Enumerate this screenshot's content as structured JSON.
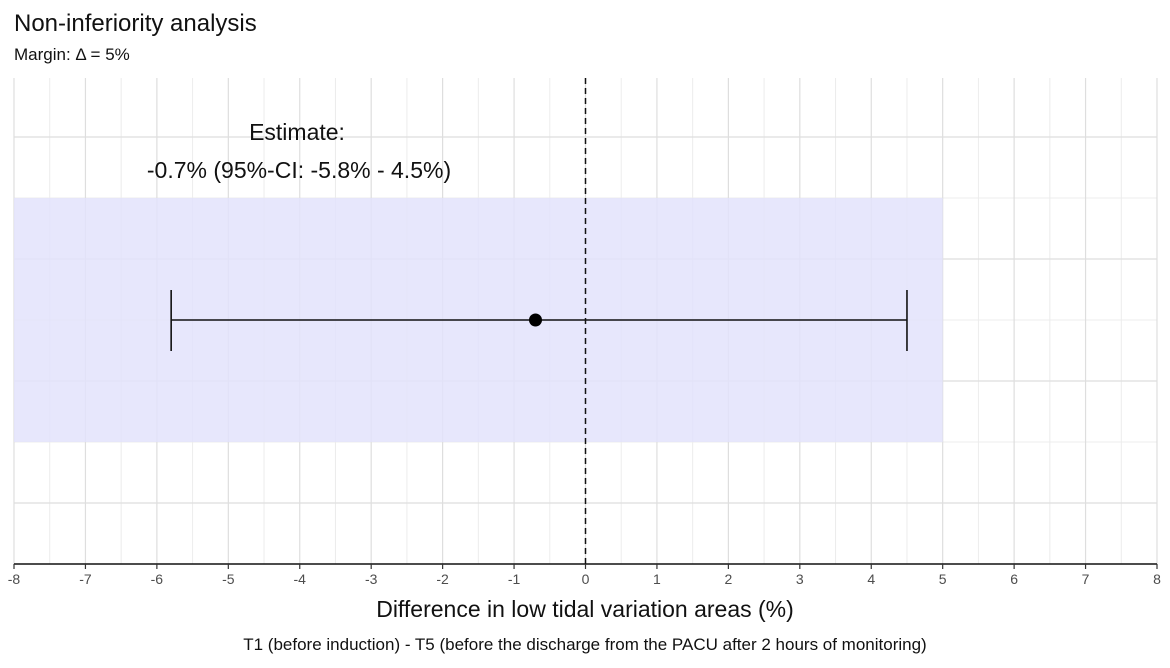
{
  "chart_data": {
    "type": "scatter",
    "title": "Non-inferiority analysis",
    "subtitle": "Margin: Δ = 5%",
    "xlabel": "Difference in low tidal variation areas (%)",
    "caption": "T1 (before induction) - T5 (before the discharge from the PACU after 2 hours of monitoring)",
    "xlim": [
      -8,
      8
    ],
    "x_ticks": [
      -8,
      -7,
      -6,
      -5,
      -4,
      -3,
      -2,
      -1,
      0,
      1,
      2,
      3,
      4,
      5,
      6,
      7,
      8
    ],
    "grid": true,
    "reference_line_x": 0,
    "margin": 5,
    "shaded_region": {
      "x_from": -8,
      "x_to": 5,
      "color": "#e3e3fb"
    },
    "estimate": {
      "value": -0.7,
      "ci_lower": -5.8,
      "ci_upper": 4.5
    },
    "annotation": {
      "line1": "Estimate:",
      "line2": "-0.7% (95%-CI:  -5.8% -  4.5%)"
    }
  }
}
